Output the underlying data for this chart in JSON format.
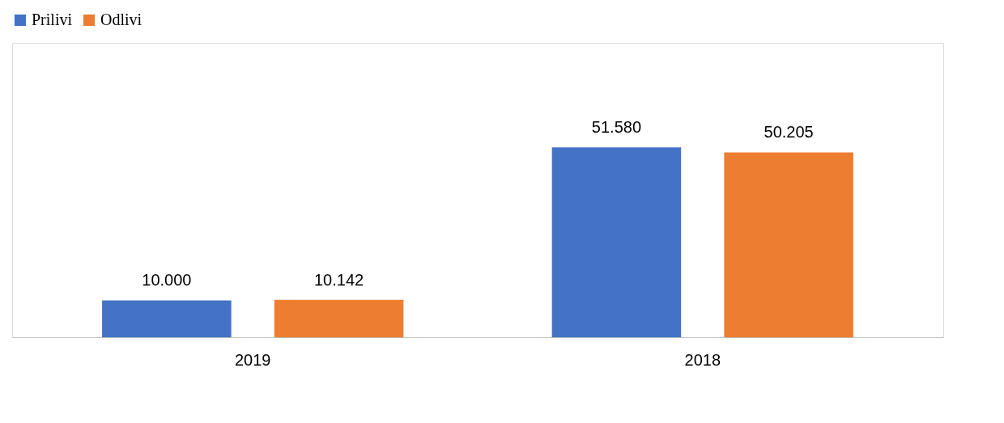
{
  "chart_data": {
    "type": "bar",
    "categories": [
      "2019",
      "2018"
    ],
    "series": [
      {
        "name": "Prilivi",
        "color": "#4472c4",
        "values": [
          10000,
          51580
        ],
        "value_labels": [
          "10.000",
          "51.580"
        ]
      },
      {
        "name": "Odlivi",
        "color": "#ed7d31",
        "values": [
          10142,
          50205
        ],
        "value_labels": [
          "10.142",
          "50.205"
        ]
      }
    ],
    "legend": "top",
    "grid": false
  }
}
